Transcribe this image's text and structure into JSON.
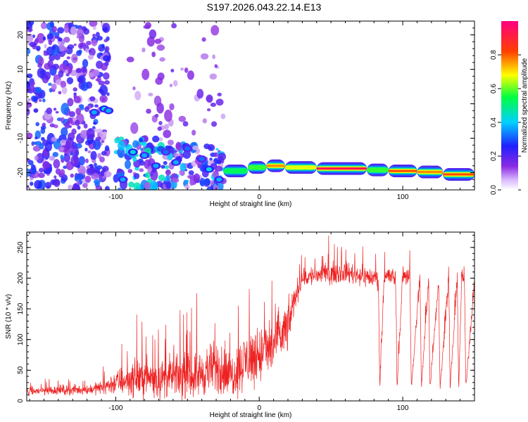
{
  "title": "S197.2026.043.22.14.E13",
  "chart_data": [
    {
      "type": "heatmap",
      "title": "S197.2026.043.22.14.E13",
      "xlabel": "Height of straight line (km)",
      "ylabel": "Frequency (Hz)",
      "xlim": [
        -162,
        150
      ],
      "ylim": [
        -25,
        24
      ],
      "xticks": [
        -100,
        0,
        100
      ],
      "yticks": [
        20,
        10,
        0,
        -10,
        -20
      ],
      "xtick_labels": [
        "-100",
        "0",
        "100"
      ],
      "ytick_labels": [
        "20",
        "10",
        "0",
        "-10",
        "-20"
      ],
      "colorbar": {
        "label": "Normalized spectral amplitude",
        "range": [
          0.0,
          1.0
        ],
        "ticks": [
          0.0,
          0.2,
          0.4,
          0.6,
          0.8
        ],
        "tick_labels": [
          "0.0",
          "0.2",
          "0.4",
          "0.6",
          "0.8"
        ],
        "colors": [
          "#ffffff",
          "#8a2be2",
          "#2020ff",
          "#00d0ff",
          "#00ff40",
          "#ffff00",
          "#ff4000",
          "#ff0080"
        ]
      },
      "ridge_segments": [
        {
          "x0": -25,
          "x1": -8,
          "freq": -19.5,
          "amplitude": 0.55
        },
        {
          "x0": -8,
          "x1": 5,
          "freq": -18.5,
          "amplitude": 0.6
        },
        {
          "x0": 5,
          "x1": 18,
          "freq": -18.0,
          "amplitude": 0.8
        },
        {
          "x0": 18,
          "x1": 40,
          "freq": -18.5,
          "amplitude": 0.7
        },
        {
          "x0": 40,
          "x1": 75,
          "freq": -18.8,
          "amplitude": 0.95
        },
        {
          "x0": 75,
          "x1": 90,
          "freq": -19.2,
          "amplitude": 0.6
        },
        {
          "x0": 90,
          "x1": 110,
          "freq": -19.5,
          "amplitude": 0.85
        },
        {
          "x0": 110,
          "x1": 128,
          "freq": -19.8,
          "amplitude": 0.8
        },
        {
          "x0": 128,
          "x1": 150,
          "freq": -20.5,
          "amplitude": 0.85
        }
      ],
      "blob_clusters": [
        {
          "x0": -162,
          "x1": -105,
          "f0": -25,
          "f1": 24,
          "count": 420,
          "amplitude_max": 0.3
        },
        {
          "x0": -100,
          "x1": -60,
          "f0": -25,
          "f1": -10,
          "count": 110,
          "amplitude_max": 0.45
        },
        {
          "x0": -60,
          "x1": -25,
          "f0": -25,
          "f1": -12,
          "count": 90,
          "amplitude_max": 0.4
        },
        {
          "x0": -90,
          "x1": -25,
          "f0": -10,
          "f1": 24,
          "count": 60,
          "amplitude_max": 0.15
        }
      ],
      "hot_spots": [
        {
          "x": -115,
          "freq": -2.5,
          "amplitude": 0.4
        },
        {
          "x": -108,
          "freq": -1.5,
          "amplitude": 0.45
        },
        {
          "x": -105,
          "freq": -2.0,
          "amplitude": 0.4
        },
        {
          "x": -95,
          "freq": -22.0,
          "amplitude": 0.4
        },
        {
          "x": -88,
          "freq": -14.0,
          "amplitude": 0.45
        },
        {
          "x": -80,
          "freq": -15.0,
          "amplitude": 0.4
        },
        {
          "x": -72,
          "freq": -18.0,
          "amplitude": 0.4
        },
        {
          "x": -65,
          "freq": -14.0,
          "amplitude": 0.35
        },
        {
          "x": -58,
          "freq": -17.0,
          "amplitude": 0.4
        },
        {
          "x": -50,
          "freq": -13.0,
          "amplitude": 0.35
        },
        {
          "x": -40,
          "freq": -16.0,
          "amplitude": 0.35
        },
        {
          "x": -35,
          "freq": -19.0,
          "amplitude": 0.45
        },
        {
          "x": -28,
          "freq": -22.0,
          "amplitude": 0.4
        }
      ]
    },
    {
      "type": "line",
      "xlabel": "Height of straight line (km)",
      "ylabel": "SNR (10 * v/v)",
      "xlim": [
        -162,
        150
      ],
      "ylim": [
        0,
        275
      ],
      "xticks": [
        -100,
        0,
        100
      ],
      "yticks": [
        0,
        50,
        100,
        150,
        200,
        250
      ],
      "xtick_labels": [
        "-100",
        "0",
        "100"
      ],
      "ytick_labels": [
        "0",
        "50",
        "100",
        "150",
        "200",
        "250"
      ],
      "color": "#ee2222",
      "series": [
        {
          "name": "SNR",
          "x": [
            -162,
            -140,
            -120,
            -110,
            -100,
            -90,
            -80,
            -70,
            -60,
            -50,
            -40,
            -30,
            -20,
            -10,
            0,
            10,
            20,
            25,
            30,
            40,
            60,
            80,
            83,
            84,
            87,
            95,
            96,
            100,
            105,
            106,
            112,
            113,
            118,
            119,
            125,
            126,
            132,
            133,
            138,
            139,
            141,
            143,
            144,
            150
          ],
          "mean": [
            15,
            18,
            18,
            22,
            30,
            35,
            40,
            35,
            40,
            40,
            45,
            55,
            40,
            65,
            75,
            90,
            120,
            170,
            200,
            205,
            210,
            200,
            200,
            20,
            205,
            200,
            20,
            205,
            205,
            20,
            205,
            20,
            200,
            20,
            200,
            20,
            200,
            20,
            200,
            20,
            200,
            200,
            20,
            200
          ],
          "spread": [
            10,
            12,
            12,
            15,
            30,
            40,
            50,
            45,
            50,
            50,
            55,
            65,
            55,
            70,
            70,
            70,
            60,
            30,
            25,
            25,
            25,
            25,
            25,
            8,
            25,
            25,
            8,
            25,
            25,
            8,
            25,
            8,
            25,
            8,
            25,
            8,
            25,
            8,
            25,
            8,
            25,
            25,
            8,
            25
          ],
          "samples": 1800
        }
      ]
    }
  ]
}
